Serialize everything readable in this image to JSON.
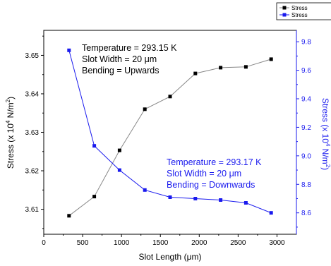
{
  "chart_data": {
    "type": "line",
    "xlabel_prefix": "Slot Length (",
    "xlabel_unit": "μm",
    "xlabel_suffix": ")",
    "ylabel_left_prefix": "Stress (x 10",
    "ylabel_left_exp": "4",
    "ylabel_left_unit": " N/m",
    "ylabel_left_exp2": "2",
    "ylabel_left_suffix": ")",
    "ylabel_right_prefix": "Stress (x 10",
    "ylabel_right_exp": "4",
    "ylabel_right_unit": " N/m",
    "ylabel_right_exp2": "2",
    "ylabel_right_suffix": ")",
    "xlim": [
      0,
      3250
    ],
    "ylim_left": [
      3.6035,
      3.6565
    ],
    "ylim_right": [
      8.45,
      9.88
    ],
    "xticks": [
      0,
      500,
      1000,
      1500,
      2000,
      2500,
      3000
    ],
    "yticks_left": [
      3.61,
      3.62,
      3.63,
      3.64,
      3.65
    ],
    "yticks_left_labels": [
      "3.61",
      "3.62",
      "3.63",
      "3.64",
      "3.65"
    ],
    "yticks_right": [
      8.6,
      8.8,
      9.0,
      9.2,
      9.4,
      9.6,
      9.8
    ],
    "yticks_right_labels": [
      "8.6",
      "8.8",
      "9.0",
      "9.2",
      "9.4",
      "9.6",
      "9.8"
    ],
    "grid": false,
    "legend_placement": "top-right",
    "series": [
      {
        "name": "Stress",
        "axis": "left",
        "color": "#000000",
        "line_color": "#888888",
        "marker": "square",
        "x": [
          325,
          650,
          975,
          1300,
          1625,
          1950,
          2275,
          2600,
          2925
        ],
        "y": [
          3.6083,
          3.6133,
          3.6253,
          3.636,
          3.6393,
          3.6453,
          3.6468,
          3.647,
          3.649
        ]
      },
      {
        "name": "Stress",
        "axis": "right",
        "color": "#1a1aee",
        "line_color": "#1a1aee",
        "marker": "square",
        "x": [
          325,
          650,
          975,
          1300,
          1625,
          1950,
          2275,
          2600,
          2925
        ],
        "y": [
          9.74,
          9.07,
          8.9,
          8.76,
          8.71,
          8.7,
          8.69,
          8.67,
          8.6
        ]
      }
    ],
    "annotations": [
      {
        "color": "#000000",
        "lines": [
          {
            "text": "Temperature = 293.15 K"
          },
          {
            "text": "Slot Width = 20 ",
            "unit": "μm"
          },
          {
            "text": "Bending = Upwards"
          }
        ]
      },
      {
        "color": "#1a1aee",
        "lines": [
          {
            "text": "Temperature = 293.17 K"
          },
          {
            "text": "Slot Width = 20 ",
            "unit": "μm"
          },
          {
            "text": "Bending = Downwards"
          }
        ]
      }
    ]
  }
}
